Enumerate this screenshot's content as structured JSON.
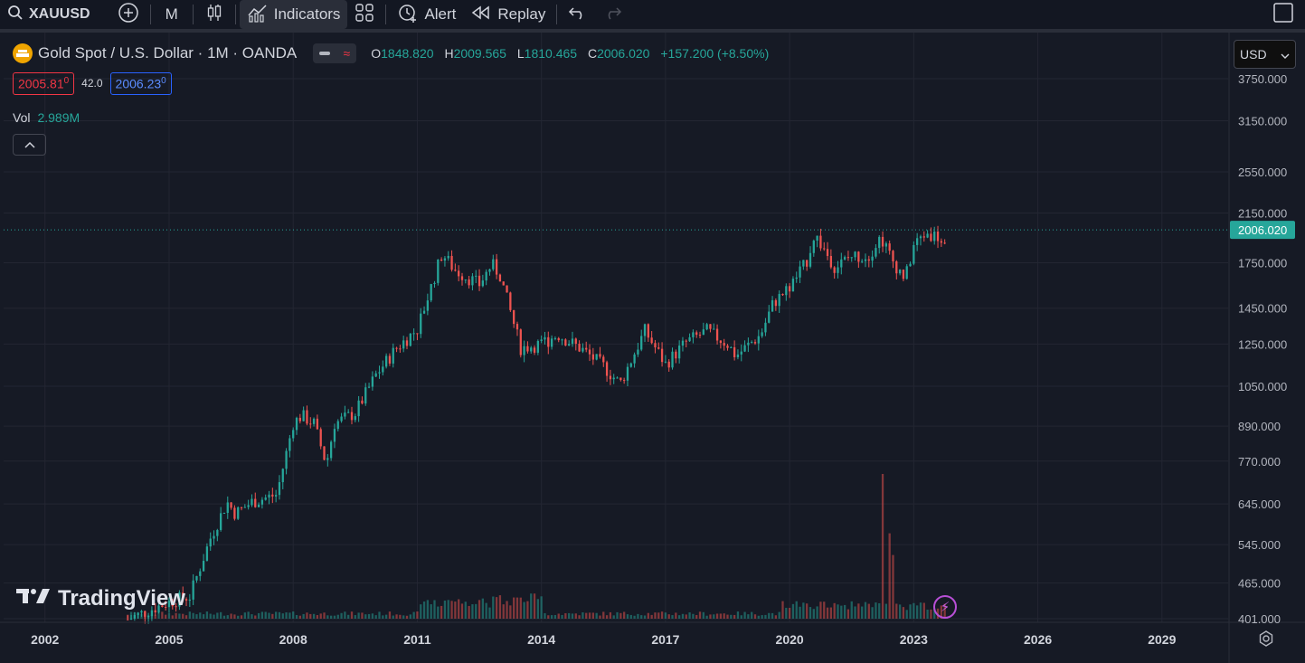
{
  "toolbar": {
    "symbol": "XAUUSD",
    "interval": "M",
    "indicators_label": "Indicators",
    "alert_label": "Alert",
    "replay_label": "Replay"
  },
  "legend": {
    "title": "Gold Spot / U.S. Dollar · 1M · OANDA",
    "open_key": "O",
    "open_val": "1848.820",
    "high_key": "H",
    "high_val": "2009.565",
    "low_key": "L",
    "low_val": "1810.465",
    "close_key": "C",
    "close_val": "2006.020",
    "change": "+157.200 (+8.50%)"
  },
  "pricebox": {
    "bid": "2005.81",
    "bid_sup": "0",
    "spread": "42.0",
    "ask": "2006.23",
    "ask_sup": "0"
  },
  "volume_legend": {
    "label": "Vol",
    "value": "2.989M"
  },
  "currency": "USD",
  "watermark": "TradingView",
  "colors": {
    "up": "#26a69a",
    "down": "#ef5350",
    "background": "#161a25",
    "grid": "#232632",
    "last_price": "#26a69a"
  },
  "chart_data": {
    "type": "candlestick",
    "symbol": "Gold Spot / U.S. Dollar",
    "interval": "1M",
    "y_scale": "log",
    "ylim": [
      401,
      3750
    ],
    "y_ticks": [
      "3750.000",
      "3150.000",
      "2550.000",
      "2150.000",
      "1750.000",
      "1450.000",
      "1250.000",
      "1050.000",
      "890.000",
      "770.000",
      "645.000",
      "545.000",
      "465.000",
      "401.000"
    ],
    "y_tick_values": [
      3750,
      3150,
      2550,
      2150,
      1750,
      1450,
      1250,
      1050,
      890,
      770,
      645,
      545,
      465,
      401
    ],
    "x_ticks": [
      "2002",
      "2005",
      "2008",
      "2011",
      "2014",
      "2017",
      "2020",
      "2023",
      "2026",
      "2029"
    ],
    "x_tick_years": [
      2002,
      2005,
      2008,
      2011,
      2014,
      2017,
      2020,
      2023,
      2026,
      2029
    ],
    "x_range": [
      2001.0,
      2030.6
    ],
    "last_price": "2006.020",
    "last_price_value": 2006.02,
    "close_anchors": [
      [
        2004.0,
        400
      ],
      [
        2005.0,
        430
      ],
      [
        2005.5,
        440
      ],
      [
        2006.0,
        560
      ],
      [
        2006.4,
        650
      ],
      [
        2006.6,
        620
      ],
      [
        2007.0,
        650
      ],
      [
        2007.6,
        670
      ],
      [
        2008.0,
        900
      ],
      [
        2008.2,
        930
      ],
      [
        2008.5,
        900
      ],
      [
        2008.8,
        760
      ],
      [
        2009.0,
        900
      ],
      [
        2009.5,
        940
      ],
      [
        2010.0,
        1100
      ],
      [
        2010.5,
        1230
      ],
      [
        2011.0,
        1330
      ],
      [
        2011.6,
        1820
      ],
      [
        2011.9,
        1700
      ],
      [
        2012.5,
        1600
      ],
      [
        2012.8,
        1740
      ],
      [
        2013.0,
        1660
      ],
      [
        2013.5,
        1230
      ],
      [
        2014.0,
        1250
      ],
      [
        2014.4,
        1300
      ],
      [
        2015.0,
        1220
      ],
      [
        2015.5,
        1140
      ],
      [
        2015.9,
        1060
      ],
      [
        2016.5,
        1320
      ],
      [
        2017.0,
        1150
      ],
      [
        2017.5,
        1260
      ],
      [
        2018.0,
        1320
      ],
      [
        2018.5,
        1250
      ],
      [
        2018.7,
        1190
      ],
      [
        2019.3,
        1300
      ],
      [
        2019.6,
        1480
      ],
      [
        2020.0,
        1580
      ],
      [
        2020.4,
        1750
      ],
      [
        2020.6,
        1970
      ],
      [
        2021.1,
        1720
      ],
      [
        2021.5,
        1800
      ],
      [
        2021.9,
        1800
      ],
      [
        2022.2,
        1950
      ],
      [
        2022.5,
        1760
      ],
      [
        2022.8,
        1640
      ],
      [
        2023.0,
        1880
      ],
      [
        2023.3,
        1980
      ],
      [
        2023.6,
        1950
      ],
      [
        2023.75,
        1848
      ],
      [
        2023.83,
        2006
      ]
    ],
    "volume_spikes": [
      [
        2022.25,
        100
      ],
      [
        2022.4,
        59
      ],
      [
        2022.5,
        44
      ]
    ],
    "volume_max_label": "2.989M"
  }
}
